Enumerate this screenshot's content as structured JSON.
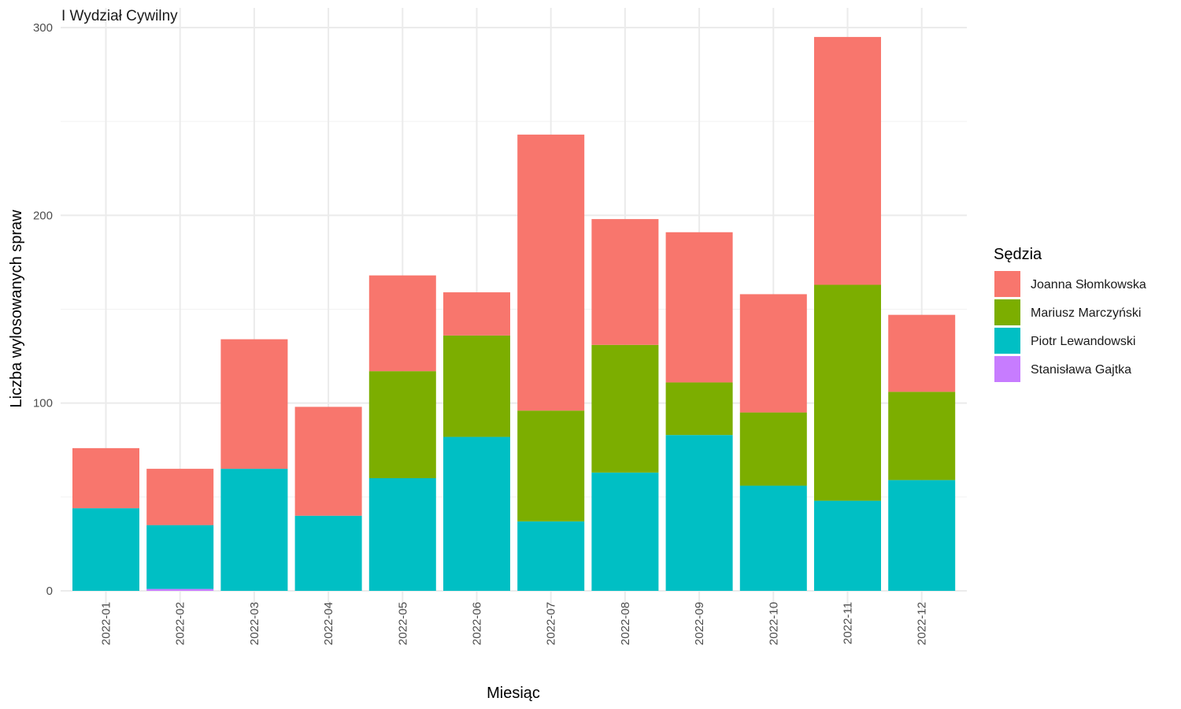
{
  "chart_data": {
    "type": "bar",
    "stacked": true,
    "title": "I Wydział Cywilny",
    "xlabel": "Miesiąc",
    "ylabel": "Liczba wylosowanych spraw",
    "ylim": [
      0,
      300
    ],
    "yticks": [
      0,
      100,
      200,
      300
    ],
    "grid": true,
    "legend_position": "right",
    "legend_title": "Sędzia",
    "categories": [
      "2022-01",
      "2022-02",
      "2022-03",
      "2022-04",
      "2022-05",
      "2022-06",
      "2022-07",
      "2022-08",
      "2022-09",
      "2022-10",
      "2022-11",
      "2022-12"
    ],
    "series": [
      {
        "name": "Stanisława Gajtka",
        "color": "#C77CFF",
        "values": [
          0,
          1,
          0,
          0,
          0,
          0,
          0,
          0,
          0,
          0,
          0,
          0
        ]
      },
      {
        "name": "Piotr Lewandowski",
        "color": "#00BFC4",
        "values": [
          44,
          34,
          65,
          40,
          60,
          82,
          37,
          63,
          83,
          56,
          48,
          59
        ]
      },
      {
        "name": "Mariusz Marczyński",
        "color": "#7CAE00",
        "values": [
          0,
          0,
          0,
          0,
          57,
          54,
          59,
          68,
          28,
          39,
          115,
          47
        ]
      },
      {
        "name": "Joanna Słomkowska",
        "color": "#F8766D",
        "values": [
          32,
          30,
          69,
          58,
          51,
          23,
          147,
          67,
          80,
          63,
          132,
          41
        ]
      }
    ],
    "legend_order": [
      "Joanna Słomkowska",
      "Mariusz Marczyński",
      "Piotr Lewandowski",
      "Stanisława Gajtka"
    ]
  }
}
